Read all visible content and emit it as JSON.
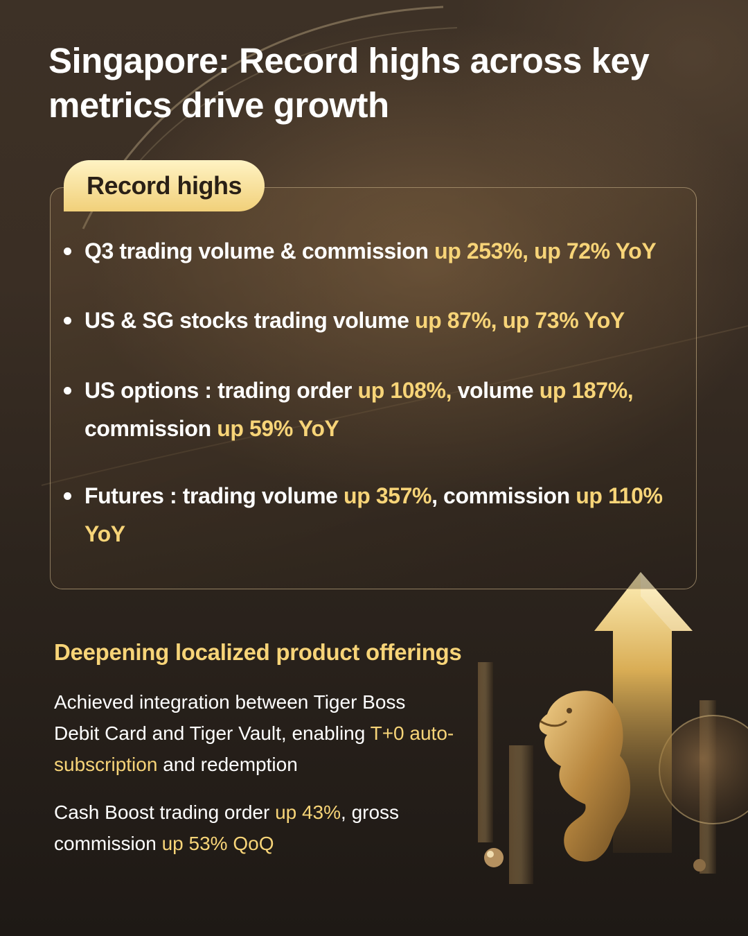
{
  "title": "Singapore: Record highs across key metrics drive growth",
  "record_highs": {
    "badge": "Record highs",
    "bullets": [
      {
        "text": "Q3 trading volume & commission",
        "highlight": "up 253%, up 72% YoY"
      },
      {
        "text": "US & SG stocks trading volume",
        "highlight": "up 87%, up 73% YoY"
      },
      {
        "text_a": "US options : trading order",
        "highlight_a": "up 108%,",
        "text_b": "volume",
        "highlight_b": "up 187%,",
        "text_c": "commission",
        "highlight_c": "up 59% YoY"
      },
      {
        "text_a": "Futures : trading volume",
        "highlight_a": "up 357%",
        "text_b": ", commission",
        "highlight_b": "up 110% YoY"
      }
    ]
  },
  "localized": {
    "heading": "Deepening localized product offerings",
    "para1": {
      "text_a": "Achieved integration between Tiger Boss Debit Card and Tiger Vault, enabling",
      "highlight": "T+0 auto-subscription",
      "text_b": "and redemption"
    },
    "para2": {
      "text_a": "Cash Boost trading order",
      "highlight_a": "up 43%",
      "text_b": ", gross commission",
      "highlight_b": "up 53% QoQ"
    }
  },
  "colors": {
    "accent_gold": "#f7d478",
    "text_white": "#ffffff",
    "background": "#2a221b"
  },
  "icons": [
    "up-arrow-icon",
    "merlion-icon"
  ]
}
